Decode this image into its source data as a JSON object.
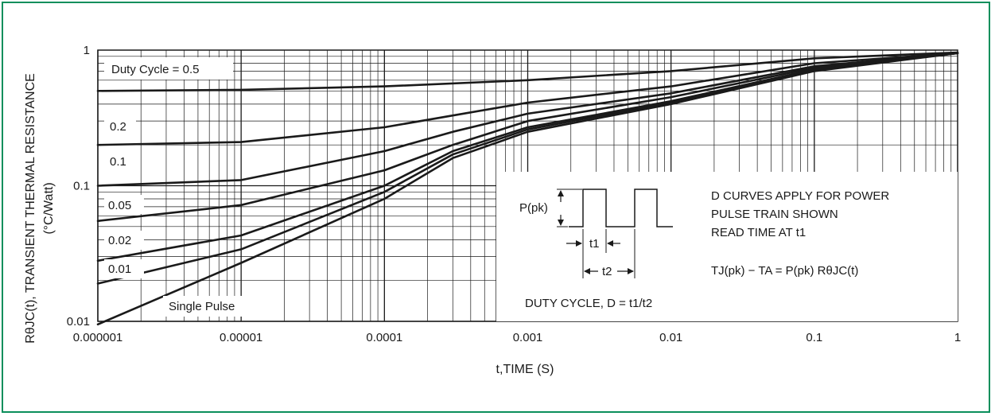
{
  "chart_data": {
    "type": "line",
    "title": "",
    "xlabel": "t,TIME (S)",
    "ylabel_line1": "RθJC(t), TRANSIENT THERMAL RESISTANCE",
    "ylabel_line2": "(°C/Watt)",
    "x_scale": "log",
    "y_scale": "log",
    "xlim": [
      1e-06,
      1
    ],
    "ylim": [
      0.01,
      1
    ],
    "grid": true,
    "x_tick_labels": [
      "0.000001",
      "0.00001",
      "0.0001",
      "0.001",
      "0.01",
      "0.1",
      "1"
    ],
    "y_tick_labels": [
      "0.01",
      "0.1",
      "1"
    ],
    "series": [
      {
        "name": "Duty Cycle = 0.5",
        "x": [
          1e-06,
          1e-05,
          0.0001,
          0.001,
          0.01,
          0.1,
          1
        ],
        "y": [
          0.5,
          0.51,
          0.54,
          0.6,
          0.7,
          0.87,
          0.96
        ]
      },
      {
        "name": "0.2",
        "x": [
          1e-06,
          1e-05,
          0.0001,
          0.001,
          0.01,
          0.1,
          1
        ],
        "y": [
          0.2,
          0.21,
          0.27,
          0.41,
          0.54,
          0.8,
          0.95
        ]
      },
      {
        "name": "0.1",
        "x": [
          1e-06,
          1e-05,
          0.0001,
          0.0003,
          0.001,
          0.01,
          0.1,
          1
        ],
        "y": [
          0.1,
          0.11,
          0.18,
          0.25,
          0.34,
          0.48,
          0.76,
          0.95
        ]
      },
      {
        "name": "0.05",
        "x": [
          1e-06,
          1e-05,
          0.0001,
          0.0003,
          0.001,
          0.01,
          0.1,
          1
        ],
        "y": [
          0.055,
          0.072,
          0.13,
          0.2,
          0.3,
          0.45,
          0.74,
          0.95
        ]
      },
      {
        "name": "0.02",
        "x": [
          1e-06,
          1e-05,
          0.0001,
          0.0003,
          0.001,
          0.01,
          0.1,
          1
        ],
        "y": [
          0.028,
          0.043,
          0.1,
          0.18,
          0.27,
          0.42,
          0.72,
          0.95
        ]
      },
      {
        "name": "0.01",
        "x": [
          1e-06,
          1e-05,
          0.0001,
          0.0003,
          0.001,
          0.01,
          0.1,
          1
        ],
        "y": [
          0.019,
          0.034,
          0.09,
          0.17,
          0.26,
          0.41,
          0.71,
          0.95
        ]
      },
      {
        "name": "Single Pulse",
        "x": [
          1e-06,
          1e-05,
          0.0001,
          0.0003,
          0.001,
          0.01,
          0.1,
          1
        ],
        "y": [
          0.0095,
          0.027,
          0.08,
          0.16,
          0.25,
          0.4,
          0.7,
          0.95
        ]
      }
    ],
    "series_labels": {
      "d05": "Duty Cycle = 0.5",
      "d02": "0.2",
      "d01": "0.1",
      "d005": "0.05",
      "d002": "0.02",
      "d001": "0.01",
      "single": "Single Pulse"
    },
    "inset": {
      "p_pk": "P(pk)",
      "t1": "t1",
      "t2": "t2",
      "duty_cycle_formula": "DUTY CYCLE, D = t1/t2",
      "note_line1": "D CURVES APPLY FOR POWER",
      "note_line2": "PULSE TRAIN SHOWN",
      "note_line3": "READ TIME AT t1",
      "formula": "TJ(pk) − TA = P(pk) RθJC(t)"
    }
  }
}
